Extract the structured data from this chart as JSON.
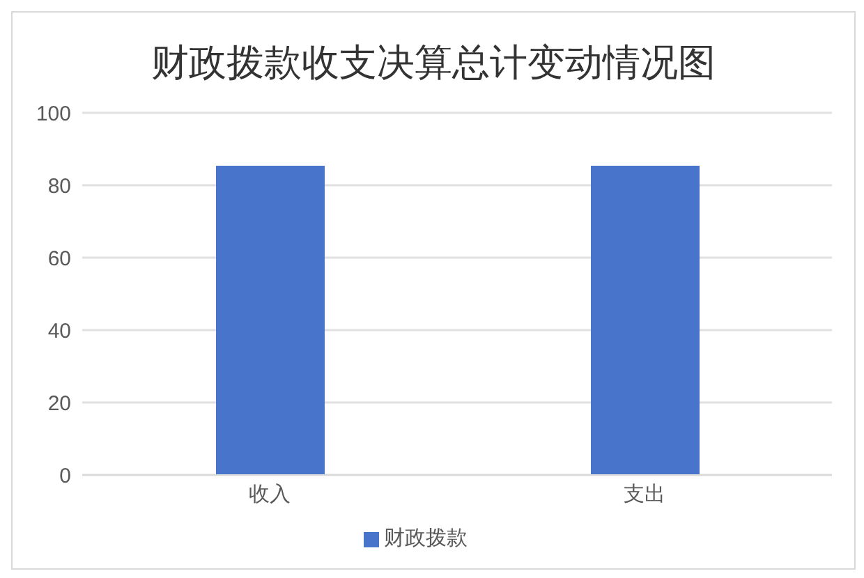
{
  "chart_data": {
    "type": "bar",
    "title": "财政拨款收支决算总计变动情况图",
    "categories": [
      "收入",
      "支出"
    ],
    "series": [
      {
        "name": "财政拨款",
        "color": "#4874cb",
        "values": [
          85.4,
          85.4
        ]
      }
    ],
    "ylim": [
      0,
      100
    ],
    "yticks": [
      0,
      20,
      40,
      60,
      80,
      100
    ],
    "grid": "y",
    "legend": "bottom"
  }
}
